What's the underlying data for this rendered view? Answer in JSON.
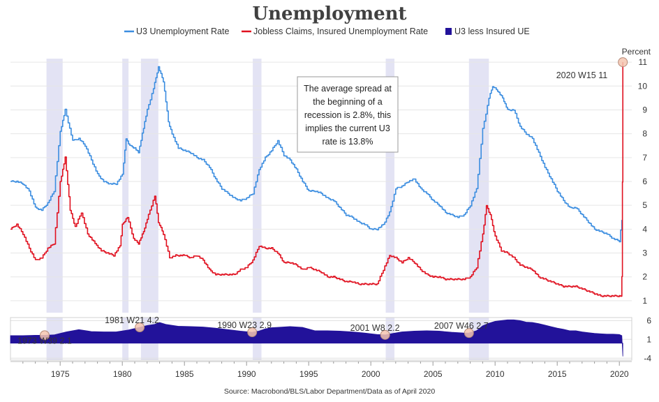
{
  "chart_data": {
    "type": "line",
    "title": "Unemployment",
    "unit_label": "Percent",
    "source": "Source: Macrobond/BLS/Labor Department/Data as of April 2020",
    "x_range": [
      1971,
      2021
    ],
    "x_ticks": [
      "1975",
      "1980",
      "1985",
      "1990",
      "1995",
      "2000",
      "2005",
      "2010",
      "2015",
      "2020"
    ],
    "y_range": [
      0.5,
      11.5
    ],
    "y_ticks": [
      "1",
      "2",
      "3",
      "4",
      "5",
      "6",
      "7",
      "8",
      "9",
      "10",
      "11"
    ],
    "lower_y_range": [
      -4.5,
      6.8
    ],
    "lower_y_ticks": [
      "6",
      "1",
      "-4"
    ],
    "legend": [
      {
        "name": "U3 Unemployment Rate",
        "color": "#3b8de0"
      },
      {
        "name": "Jobless Claims, Insured Unemployment Rate",
        "color": "#e0101f"
      },
      {
        "name": "U3 less Insured UE",
        "color": "#22129a"
      }
    ],
    "recessions": [
      [
        1973.9,
        1975.2
      ],
      [
        1980.0,
        1980.5
      ],
      [
        1981.5,
        1982.9
      ],
      [
        1990.5,
        1991.2
      ],
      [
        2001.2,
        2001.9
      ],
      [
        2007.9,
        2009.5
      ]
    ],
    "series": [
      {
        "name": "U3 Unemployment Rate",
        "color": "#3b8de0",
        "x": [
          1971.0,
          1971.5,
          1972.0,
          1972.5,
          1973.0,
          1973.5,
          1974.0,
          1974.5,
          1975.0,
          1975.4,
          1976.0,
          1976.5,
          1977.0,
          1977.5,
          1978.0,
          1978.5,
          1979.0,
          1979.5,
          1980.0,
          1980.3,
          1980.6,
          1981.0,
          1981.3,
          1981.6,
          1982.0,
          1982.5,
          1982.9,
          1983.3,
          1983.7,
          1984.0,
          1984.5,
          1985.0,
          1985.5,
          1986.0,
          1986.5,
          1987.0,
          1987.5,
          1988.0,
          1988.5,
          1989.0,
          1989.5,
          1990.0,
          1990.5,
          1991.0,
          1991.5,
          1992.0,
          1992.5,
          1993.0,
          1993.5,
          1994.0,
          1994.5,
          1995.0,
          1995.5,
          1996.0,
          1996.5,
          1997.0,
          1997.5,
          1998.0,
          1998.5,
          1999.0,
          1999.5,
          2000.0,
          2000.5,
          2001.0,
          2001.5,
          2002.0,
          2002.5,
          2003.0,
          2003.5,
          2004.0,
          2004.5,
          2005.0,
          2005.5,
          2006.0,
          2006.5,
          2007.0,
          2007.5,
          2008.0,
          2008.5,
          2009.0,
          2009.5,
          2009.8,
          2010.2,
          2010.6,
          2011.0,
          2011.5,
          2012.0,
          2012.5,
          2013.0,
          2013.5,
          2014.0,
          2014.5,
          2015.0,
          2015.5,
          2016.0,
          2016.5,
          2017.0,
          2017.5,
          2018.0,
          2018.5,
          2019.0,
          2019.5,
          2020.0,
          2020.2
        ],
        "y": [
          6.0,
          6.0,
          5.9,
          5.6,
          4.9,
          4.8,
          5.1,
          5.6,
          8.1,
          9.0,
          7.7,
          7.8,
          7.5,
          6.9,
          6.3,
          6.0,
          5.9,
          5.9,
          6.3,
          7.8,
          7.5,
          7.4,
          7.2,
          8.0,
          9.0,
          9.9,
          10.8,
          10.2,
          8.5,
          8.0,
          7.4,
          7.3,
          7.2,
          7.0,
          6.9,
          6.6,
          6.1,
          5.7,
          5.5,
          5.3,
          5.2,
          5.3,
          5.5,
          6.5,
          7.0,
          7.3,
          7.7,
          7.1,
          6.9,
          6.5,
          6.0,
          5.6,
          5.6,
          5.5,
          5.3,
          5.2,
          4.9,
          4.6,
          4.5,
          4.3,
          4.2,
          4.0,
          4.0,
          4.2,
          4.7,
          5.7,
          5.8,
          6.0,
          6.1,
          5.7,
          5.5,
          5.2,
          5.0,
          4.7,
          4.6,
          4.5,
          4.6,
          5.0,
          5.7,
          8.2,
          9.5,
          10.0,
          9.8,
          9.5,
          9.0,
          9.0,
          8.3,
          8.0,
          7.8,
          7.2,
          6.6,
          6.1,
          5.6,
          5.2,
          4.9,
          4.9,
          4.6,
          4.3,
          4.0,
          3.9,
          3.8,
          3.6,
          3.5,
          4.4
        ]
      },
      {
        "name": "Jobless Claims, Insured Unemployment Rate",
        "color": "#e0101f",
        "x": [
          1971.0,
          1971.5,
          1972.0,
          1972.5,
          1973.0,
          1973.5,
          1974.0,
          1974.5,
          1975.0,
          1975.4,
          1975.8,
          1976.2,
          1976.7,
          1977.2,
          1977.8,
          1978.3,
          1978.8,
          1979.3,
          1979.8,
          1980.0,
          1980.4,
          1980.9,
          1981.3,
          1981.7,
          1982.1,
          1982.6,
          1982.9,
          1983.3,
          1983.8,
          1984.3,
          1985.0,
          1985.5,
          1986.0,
          1986.5,
          1987.0,
          1987.5,
          1988.0,
          1988.5,
          1989.0,
          1989.5,
          1990.0,
          1990.5,
          1991.0,
          1991.5,
          1992.0,
          1992.5,
          1993.0,
          1993.5,
          1994.0,
          1994.5,
          1995.0,
          1995.5,
          1996.0,
          1996.5,
          1997.0,
          1997.5,
          1998.0,
          1998.5,
          1999.0,
          1999.5,
          2000.0,
          2000.5,
          2001.0,
          2001.5,
          2002.0,
          2002.5,
          2003.0,
          2003.5,
          2004.0,
          2004.5,
          2005.0,
          2005.5,
          2006.0,
          2006.5,
          2007.0,
          2007.5,
          2008.0,
          2008.5,
          2009.0,
          2009.3,
          2009.6,
          2010.0,
          2010.5,
          2011.0,
          2011.5,
          2012.0,
          2012.5,
          2013.0,
          2013.5,
          2014.0,
          2014.5,
          2015.0,
          2015.5,
          2016.0,
          2016.5,
          2017.0,
          2017.5,
          2018.0,
          2018.5,
          2019.0,
          2019.5,
          2020.0,
          2020.1,
          2020.2,
          2020.25,
          2020.28
        ],
        "y": [
          4.0,
          4.2,
          3.8,
          3.2,
          2.7,
          2.8,
          3.2,
          3.4,
          6.0,
          7.0,
          4.8,
          4.1,
          4.7,
          3.8,
          3.4,
          3.1,
          3.0,
          2.9,
          3.3,
          4.2,
          4.5,
          3.6,
          3.4,
          3.9,
          4.6,
          5.4,
          4.3,
          3.8,
          2.8,
          2.9,
          2.9,
          2.8,
          2.9,
          2.7,
          2.3,
          2.1,
          2.1,
          2.1,
          2.1,
          2.3,
          2.4,
          2.7,
          3.3,
          3.2,
          3.2,
          3.0,
          2.6,
          2.6,
          2.5,
          2.3,
          2.4,
          2.3,
          2.2,
          2.0,
          2.0,
          1.9,
          1.8,
          1.8,
          1.7,
          1.7,
          1.7,
          1.7,
          2.3,
          2.9,
          2.8,
          2.6,
          2.8,
          2.6,
          2.3,
          2.1,
          2.0,
          2.0,
          1.9,
          1.9,
          1.9,
          1.9,
          2.0,
          2.4,
          3.8,
          5.0,
          4.6,
          3.7,
          3.1,
          3.0,
          2.8,
          2.5,
          2.4,
          2.3,
          2.0,
          1.9,
          1.8,
          1.7,
          1.6,
          1.6,
          1.6,
          1.5,
          1.4,
          1.3,
          1.2,
          1.2,
          1.2,
          1.2,
          1.2,
          2.0,
          6.0,
          11.0
        ]
      },
      {
        "name": "U3 less Insured UE",
        "color": "#22129a",
        "x": [
          1971.0,
          1972.0,
          1973.0,
          1973.75,
          1974.5,
          1975.5,
          1976.5,
          1977.5,
          1978.5,
          1979.5,
          1980.5,
          1981.4,
          1982.0,
          1982.6,
          1983.0,
          1983.5,
          1984.5,
          1985.5,
          1986.5,
          1987.5,
          1988.5,
          1989.5,
          1990.45,
          1991.0,
          1991.5,
          1992.0,
          1992.5,
          1993.5,
          1994.5,
          1995.5,
          1996.5,
          1997.5,
          1998.5,
          1999.5,
          2000.5,
          2001.15,
          2001.8,
          2002.5,
          2003.5,
          2004.5,
          2005.5,
          2006.5,
          2007.5,
          2007.9,
          2008.5,
          2009.0,
          2009.5,
          2010.0,
          2010.5,
          2011.0,
          2011.5,
          2012.0,
          2012.5,
          2013.0,
          2013.5,
          2014.0,
          2014.5,
          2015.0,
          2015.5,
          2016.0,
          2016.5,
          2017.0,
          2017.5,
          2018.0,
          2018.5,
          2019.0,
          2019.5,
          2020.0,
          2020.2,
          2020.28
        ],
        "y": [
          2.0,
          2.0,
          2.1,
          2.1,
          2.2,
          3.0,
          3.6,
          3.1,
          3.0,
          3.0,
          3.5,
          4.2,
          4.7,
          5.0,
          5.5,
          5.0,
          4.5,
          4.4,
          4.3,
          4.0,
          3.6,
          3.2,
          2.9,
          3.2,
          3.8,
          4.1,
          4.2,
          4.4,
          4.2,
          3.3,
          3.3,
          3.2,
          3.0,
          2.7,
          2.3,
          2.2,
          2.6,
          3.0,
          3.2,
          3.3,
          3.2,
          2.9,
          2.7,
          2.7,
          3.3,
          4.6,
          5.3,
          5.8,
          6.0,
          6.2,
          6.2,
          6.0,
          5.6,
          5.5,
          5.2,
          4.8,
          4.4,
          4.0,
          3.7,
          3.3,
          3.3,
          3.0,
          2.8,
          2.6,
          2.5,
          2.4,
          2.4,
          2.3,
          2.0,
          -3.5
        ]
      }
    ],
    "annotations": [
      {
        "label": "2020 W15 11",
        "x": 2020.28,
        "y": 11.0,
        "panel": "upper"
      },
      {
        "label": "1973 W39 2.1",
        "x": 1973.75,
        "y": 2.1,
        "panel": "lower"
      },
      {
        "label": "1981 W21 4.2",
        "x": 1981.4,
        "y": 4.2,
        "panel": "lower"
      },
      {
        "label": "1990 W23 2.9",
        "x": 1990.45,
        "y": 2.9,
        "panel": "lower"
      },
      {
        "label": "2001 W8 2.2",
        "x": 2001.15,
        "y": 2.2,
        "panel": "lower"
      },
      {
        "label": "2007 W46 2.7",
        "x": 2007.9,
        "y": 2.7,
        "panel": "lower"
      }
    ],
    "callout_lines": [
      "The average spread at",
      "the beginning of a",
      "recession is 2.8%, this",
      "implies the current U3",
      "rate is 13.8%"
    ]
  }
}
